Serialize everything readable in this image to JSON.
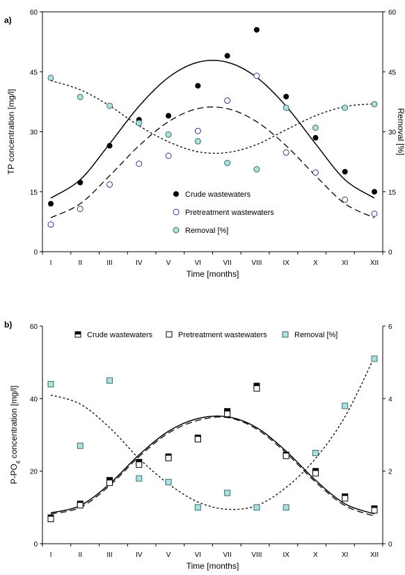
{
  "chart_data": [
    {
      "panel_label": "a)",
      "type": "scatter",
      "ylabel": "TP concentration  [mg/l]",
      "y2label": "Removal  [%]",
      "xlabel": "Time  [months]",
      "categories": [
        "I",
        "II",
        "III",
        "IV",
        "V",
        "VI",
        "VII",
        "VIII",
        "IX",
        "X",
        "XI",
        "XII"
      ],
      "ylim": [
        0,
        60
      ],
      "yticks": [
        0,
        15,
        30,
        45,
        60
      ],
      "y2lim": [
        0,
        60
      ],
      "y2ticks": [
        0,
        15,
        30,
        45,
        60
      ],
      "legend_position": "lower-center",
      "series": [
        {
          "name": "Crude wastewaters",
          "axis": "left",
          "marker": "filled-circle",
          "values": [
            12,
            17.3,
            26.5,
            33,
            34,
            41.5,
            49,
            55.5,
            38.8,
            28.5,
            20,
            15
          ],
          "trend": [
            13.4,
            18,
            27,
            36.4,
            43.6,
            47.4,
            47.4,
            43.6,
            36.4,
            27,
            18,
            13.4
          ]
        },
        {
          "name": "Pretreatment wastewaters",
          "axis": "left",
          "marker": "open-circle",
          "values": [
            6.8,
            10.7,
            16.8,
            22,
            24,
            30.2,
            37.8,
            44,
            24.8,
            19.8,
            13,
            9.5
          ],
          "trend": [
            8.5,
            12,
            19,
            26.5,
            32.5,
            35.8,
            35.8,
            32.5,
            26.5,
            19,
            12,
            8.5
          ]
        },
        {
          "name": "Removal  [%]",
          "axis": "right",
          "marker": "teal-circle",
          "values": [
            43.5,
            38.7,
            36.5,
            32.2,
            29.3,
            27.6,
            22.2,
            20.6,
            36,
            31,
            36,
            36.9
          ],
          "trend": [
            42.8,
            40.5,
            36.5,
            31.5,
            27.5,
            25,
            24.8,
            26.8,
            30.5,
            34,
            36.3,
            37
          ]
        }
      ]
    },
    {
      "panel_label": "b)",
      "type": "scatter",
      "ylabel": "P-PO",
      "ylabel_sub": "4",
      "ylabel_suffix": " concentration  [mg/l]",
      "xlabel": "Time  [months]",
      "categories": [
        "I",
        "II",
        "III",
        "IV",
        "V",
        "VI",
        "VII",
        "VIII",
        "IX",
        "X",
        "XI",
        "XII"
      ],
      "ylim": [
        0,
        60
      ],
      "yticks": [
        0,
        20,
        40,
        60
      ],
      "y2lim": [
        0,
        6
      ],
      "y2ticks": [
        0,
        2,
        4,
        6
      ],
      "legend_position": "top",
      "series": [
        {
          "name": "Crude wastewaters",
          "axis": "left",
          "marker": "half-filled-square",
          "values": [
            7.2,
            11,
            17.5,
            22.5,
            24,
            29.2,
            36.5,
            43.5,
            24.5,
            20,
            13,
            9.7
          ],
          "trend": [
            8.5,
            10.5,
            16.5,
            24.5,
            31,
            34.5,
            35,
            32,
            25.5,
            17.5,
            11,
            8.2
          ]
        },
        {
          "name": "Pretreatment wastewaters",
          "axis": "left",
          "marker": "open-square",
          "values": [
            6.8,
            10.6,
            16.8,
            21.8,
            23.6,
            28.8,
            35.8,
            42.8,
            24.2,
            19.4,
            12.5,
            9.2
          ],
          "trend": [
            8.2,
            10,
            16,
            24,
            30.5,
            34,
            34.8,
            31.6,
            25,
            17,
            10.5,
            7.6
          ]
        },
        {
          "name": "Removal  [%]",
          "axis": "right",
          "marker": "teal-square",
          "values": [
            4.4,
            2.7,
            4.5,
            1.8,
            1.7,
            1,
            1.4,
            1,
            1,
            2.5,
            3.8,
            5.1
          ],
          "trend": [
            4.1,
            3.85,
            3.2,
            2.35,
            1.65,
            1.15,
            0.95,
            1.05,
            1.55,
            2.35,
            3.5,
            5.15
          ]
        }
      ]
    }
  ]
}
